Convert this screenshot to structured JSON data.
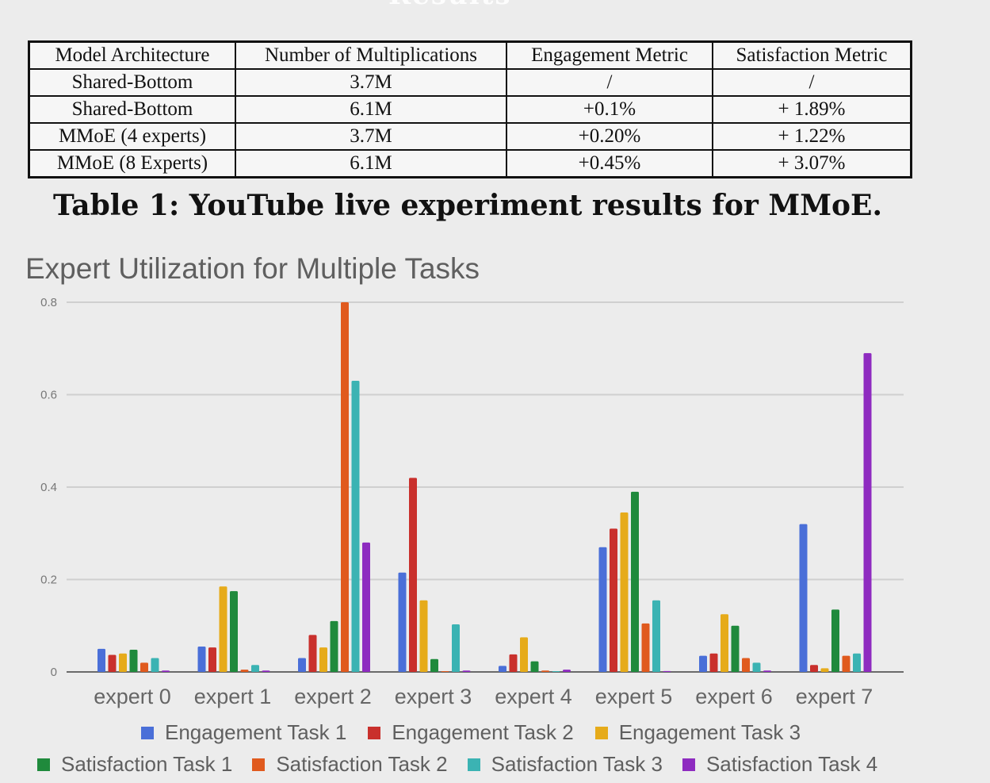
{
  "slide": {
    "header_remnant": "Results"
  },
  "table": {
    "headers": [
      "Model Architecture",
      "Number of Multiplications",
      "Engagement Metric",
      "Satisfaction Metric"
    ],
    "rows": [
      [
        "Shared-Bottom",
        "3.7M",
        "/",
        "/"
      ],
      [
        "Shared-Bottom",
        "6.1M",
        "+0.1%",
        "+ 1.89%"
      ],
      [
        "MMoE (4 experts)",
        "3.7M",
        "+0.20%",
        "+ 1.22%"
      ],
      [
        "MMoE (8 Experts)",
        "6.1M",
        "+0.45%",
        "+ 3.07%"
      ]
    ],
    "caption": "Table 1: YouTube live experiment results for MMoE."
  },
  "chart_data": {
    "type": "bar",
    "title": "Expert Utilization for Multiple Tasks",
    "xlabel": "",
    "ylabel": "",
    "categories": [
      "expert 0",
      "expert 1",
      "expert 2",
      "expert 3",
      "expert 4",
      "expert 5",
      "expert 6",
      "expert 7"
    ],
    "ylim": [
      0,
      0.8
    ],
    "yticks": [
      0,
      0.2,
      0.4,
      0.6,
      0.8
    ],
    "ytick_labels": [
      "0",
      "0.2",
      "0.4",
      "0.6",
      "0.8"
    ],
    "grid": true,
    "legend_position": "bottom",
    "series": [
      {
        "name": "Engagement Task 1",
        "color": "#4a6fd8",
        "values": [
          0.05,
          0.055,
          0.03,
          0.215,
          0.013,
          0.27,
          0.035,
          0.32
        ]
      },
      {
        "name": "Engagement Task 2",
        "color": "#c9302c",
        "values": [
          0.037,
          0.053,
          0.08,
          0.42,
          0.038,
          0.31,
          0.04,
          0.015
        ]
      },
      {
        "name": "Engagement Task 3",
        "color": "#e6ab1a",
        "values": [
          0.04,
          0.185,
          0.053,
          0.155,
          0.075,
          0.345,
          0.125,
          0.008
        ]
      },
      {
        "name": "Satisfaction Task 1",
        "color": "#1f8a3c",
        "values": [
          0.048,
          0.175,
          0.11,
          0.028,
          0.023,
          0.39,
          0.1,
          0.135
        ]
      },
      {
        "name": "Satisfaction Task 2",
        "color": "#e05a1e",
        "values": [
          0.02,
          0.005,
          0.8,
          0.0,
          0.003,
          0.105,
          0.03,
          0.035
        ]
      },
      {
        "name": "Satisfaction Task 3",
        "color": "#3bb3b3",
        "values": [
          0.03,
          0.015,
          0.63,
          0.103,
          0.0,
          0.155,
          0.02,
          0.04
        ]
      },
      {
        "name": "Satisfaction Task 4",
        "color": "#8e2bc0",
        "values": [
          0.003,
          0.003,
          0.28,
          0.003,
          0.005,
          0.002,
          0.003,
          0.69
        ]
      }
    ]
  }
}
